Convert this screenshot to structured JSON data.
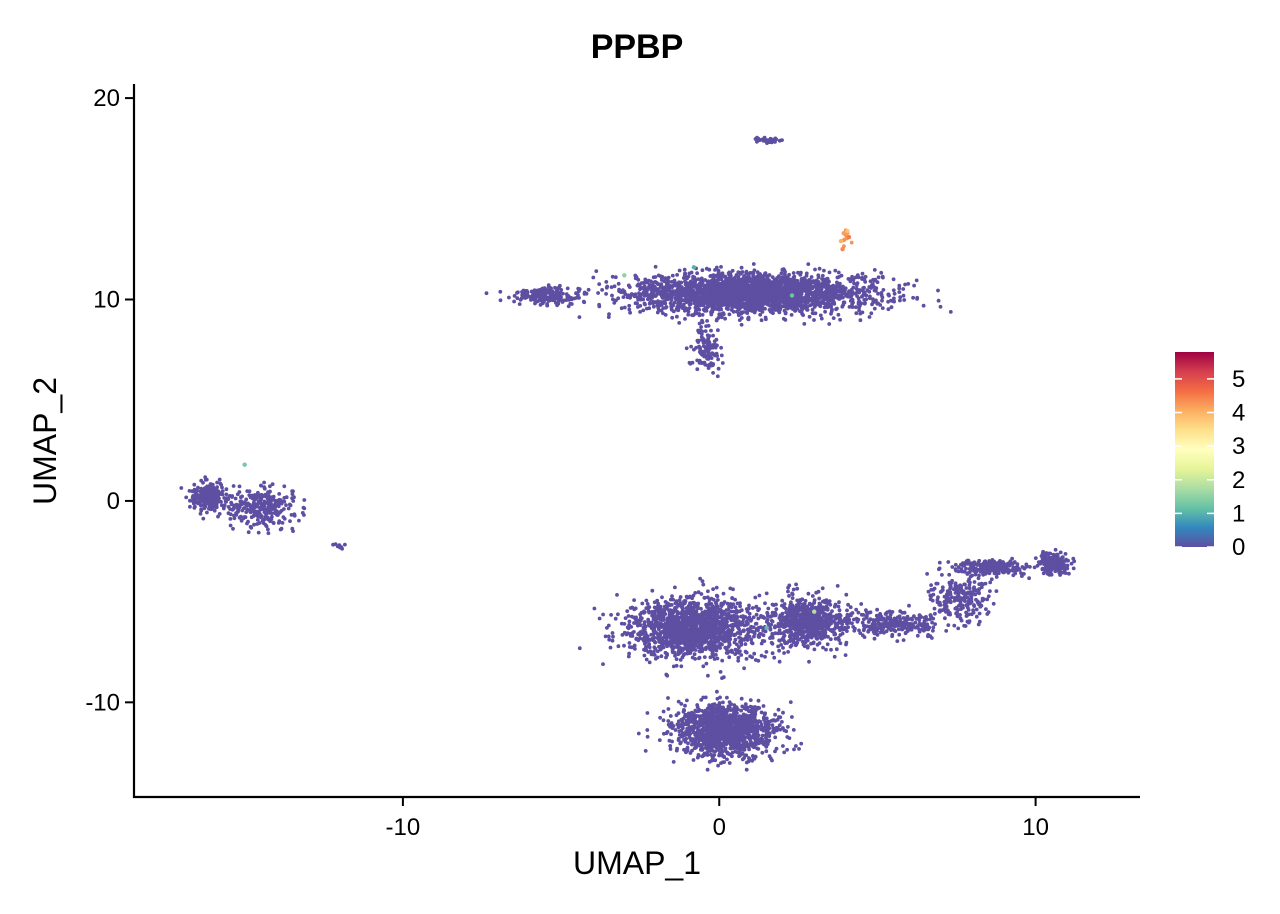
{
  "chart_data": {
    "type": "scatter",
    "title": "PPBP",
    "xlabel": "UMAP_1",
    "ylabel": "UMAP_2",
    "xlim": [
      -18.5,
      13.3
    ],
    "ylim": [
      -14.7,
      20.7
    ],
    "x_ticks": [
      -10,
      0,
      10
    ],
    "y_ticks": [
      -10,
      0,
      10,
      20
    ],
    "x_tick_labels": [
      "-10",
      "0",
      "10"
    ],
    "y_tick_labels": [
      "-10",
      "0",
      "10",
      "20"
    ],
    "grid": false,
    "legend": {
      "placement": "right",
      "type": "colorbar",
      "min": 0,
      "max": 5.8,
      "ticks": [
        0,
        1,
        2,
        3,
        4,
        5
      ],
      "tick_labels": [
        "0",
        "1",
        "2",
        "3",
        "4",
        "5"
      ],
      "palette": [
        "#5E4FA2",
        "#3288BD",
        "#66C2A5",
        "#ABDDA4",
        "#E6F598",
        "#FFFFBF",
        "#FEE08B",
        "#FDAE61",
        "#F46D43",
        "#D53E4F",
        "#9E0142"
      ]
    },
    "point_color_base": "#5E4FA2",
    "clusters": [
      {
        "id": "c1",
        "center": [
          1.5,
          17.9
        ],
        "spread": [
          0.3,
          0.12
        ],
        "n": 40,
        "expression": 0
      },
      {
        "id": "c2",
        "center": [
          4.0,
          13.1
        ],
        "spread": [
          0.1,
          0.3
        ],
        "n": 10,
        "expression": 4.3
      },
      {
        "id": "c3",
        "center": [
          1.0,
          10.3
        ],
        "spread": [
          3.2,
          0.8
        ],
        "n": 2600,
        "expression": 0
      },
      {
        "id": "c4",
        "center": [
          -5.5,
          10.2
        ],
        "spread": [
          0.9,
          0.35
        ],
        "n": 200,
        "expression": 0
      },
      {
        "id": "c5",
        "center": [
          -0.4,
          7.6
        ],
        "spread": [
          0.35,
          0.9
        ],
        "n": 120,
        "expression": 0
      },
      {
        "id": "c6",
        "center": [
          -16.2,
          0.2
        ],
        "spread": [
          0.4,
          0.6
        ],
        "n": 250,
        "expression": 0
      },
      {
        "id": "c7",
        "center": [
          -14.5,
          -0.3
        ],
        "spread": [
          1.0,
          0.8
        ],
        "n": 320,
        "expression": 0
      },
      {
        "id": "c8",
        "center": [
          -12.0,
          -2.2
        ],
        "spread": [
          0.15,
          0.1
        ],
        "n": 8,
        "expression": 0
      },
      {
        "id": "c9",
        "center": [
          -0.8,
          -6.3
        ],
        "spread": [
          1.7,
          1.2
        ],
        "n": 1600,
        "expression": 0
      },
      {
        "id": "c10",
        "center": [
          2.8,
          -6.0
        ],
        "spread": [
          1.0,
          1.0
        ],
        "n": 700,
        "expression": 0
      },
      {
        "id": "c11",
        "center": [
          5.5,
          -6.1
        ],
        "spread": [
          1.5,
          0.5
        ],
        "n": 260,
        "expression": 0
      },
      {
        "id": "c12",
        "center": [
          7.6,
          -4.8
        ],
        "spread": [
          0.8,
          1.0
        ],
        "n": 220,
        "expression": 0
      },
      {
        "id": "c13",
        "center": [
          8.6,
          -3.3
        ],
        "spread": [
          0.9,
          0.3
        ],
        "n": 240,
        "expression": 0
      },
      {
        "id": "c14",
        "center": [
          10.6,
          -3.1
        ],
        "spread": [
          0.4,
          0.4
        ],
        "n": 220,
        "expression": 0
      },
      {
        "id": "c15",
        "center": [
          0.2,
          -11.4
        ],
        "spread": [
          1.3,
          1.1
        ],
        "n": 1300,
        "expression": 0
      }
    ],
    "highlight_points": [
      {
        "x": 3.95,
        "y": 13.3,
        "value": 4.2
      },
      {
        "x": 4.1,
        "y": 13.1,
        "value": 4.5
      },
      {
        "x": 3.85,
        "y": 12.9,
        "value": 4.0
      },
      {
        "x": 4.05,
        "y": 13.4,
        "value": 3.8
      },
      {
        "x": 3.9,
        "y": 12.5,
        "value": 4.4
      },
      {
        "x": -3.0,
        "y": 11.2,
        "value": 1.5
      },
      {
        "x": 2.3,
        "y": 10.2,
        "value": 1.2
      },
      {
        "x": -0.8,
        "y": 11.6,
        "value": 1.0
      },
      {
        "x": -15.0,
        "y": 1.8,
        "value": 1.3
      },
      {
        "x": 1.5,
        "y": -6.3,
        "value": 1.1
      },
      {
        "x": 3.0,
        "y": -5.5,
        "value": 1.8
      }
    ]
  }
}
